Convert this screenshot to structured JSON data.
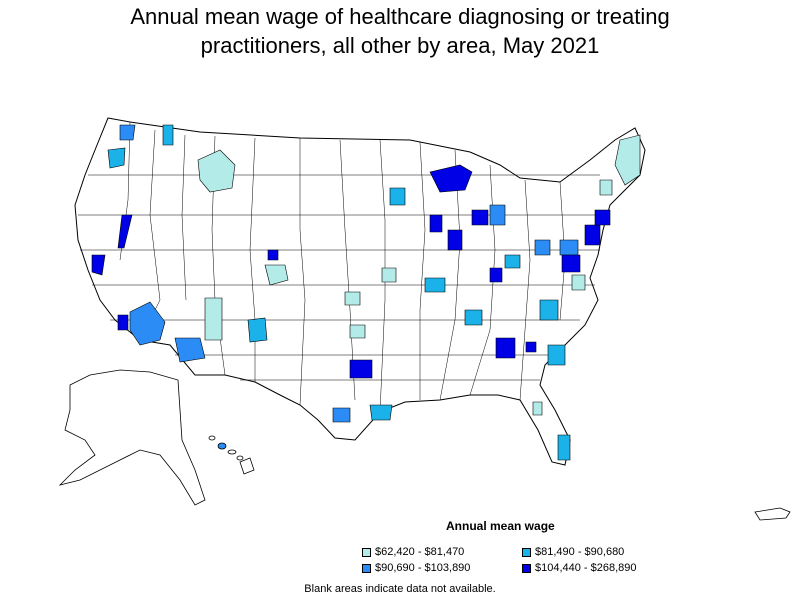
{
  "title": {
    "line1": "Annual mean wage of healthcare diagnosing or treating",
    "line2": "practitioners, all other by area, May 2021"
  },
  "legend": {
    "title": "Annual mean wage",
    "items": [
      {
        "label": "$62,420 - $81,470",
        "color": "#b3ebe8"
      },
      {
        "label": "$81,490 - $90,680",
        "color": "#1ab2e8"
      },
      {
        "label": "$90,690 - $103,890",
        "color": "#2b8cf5"
      },
      {
        "label": "$104,440 - $268,890",
        "color": "#0000e6"
      }
    ]
  },
  "footnote": "Blank areas indicate data not available.",
  "colors": {
    "tier1": "#b3ebe8",
    "tier2": "#1ab2e8",
    "tier3": "#2b8cf5",
    "tier4": "#0000e6",
    "no_data": "#ffffff",
    "border": "#000000"
  }
}
